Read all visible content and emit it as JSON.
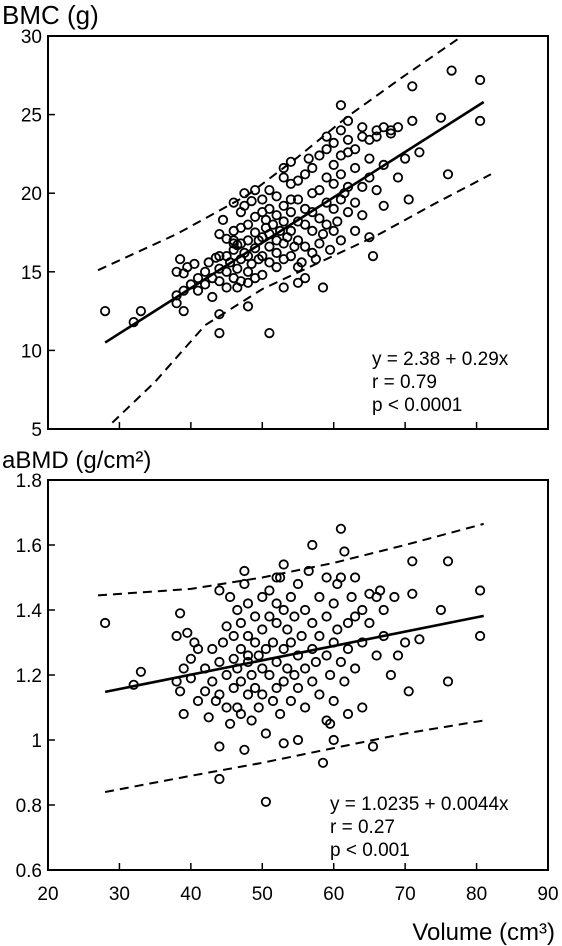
{
  "chart_data": [
    {
      "type": "scatter",
      "ylabel": "BMC (g)",
      "xlim": [
        20,
        90
      ],
      "ylim": [
        5,
        30
      ],
      "xticks": [
        20,
        30,
        40,
        50,
        60,
        70,
        80,
        90
      ],
      "yticks": [
        5,
        10,
        15,
        20,
        25,
        30
      ],
      "x_tick_labels_shown": false,
      "annotation": [
        "y = 2.38 + 0.29x",
        "r = 0.79",
        "p < 0.0001"
      ],
      "fit_line": {
        "x": [
          28,
          81
        ],
        "y": [
          10.5,
          25.8
        ]
      },
      "confidence_band": {
        "upper": {
          "x": [
            27,
            38,
            48,
            55,
            62,
            70,
            78
          ],
          "y": [
            15.1,
            17.4,
            19.9,
            22.3,
            24.9,
            27.5,
            30.0
          ]
        },
        "lower": {
          "x": [
            29,
            35,
            42,
            50,
            58,
            66,
            74,
            82
          ],
          "y": [
            5.4,
            8.0,
            11.6,
            13.9,
            15.6,
            17.3,
            19.3,
            21.2
          ]
        }
      },
      "points": [
        [
          28,
          12.5
        ],
        [
          32,
          11.8
        ],
        [
          33,
          12.5
        ],
        [
          38,
          13.5
        ],
        [
          38,
          15.0
        ],
        [
          38.5,
          15.8
        ],
        [
          39,
          14.9
        ],
        [
          39,
          13.8
        ],
        [
          39.5,
          15.3
        ],
        [
          39,
          12.5
        ],
        [
          38,
          13.0
        ],
        [
          40,
          14.2
        ],
        [
          40.5,
          15.5
        ],
        [
          41,
          14.6
        ],
        [
          41,
          13.8
        ],
        [
          42,
          15.0
        ],
        [
          42,
          14.2
        ],
        [
          42.5,
          15.6
        ],
        [
          43,
          13.4
        ],
        [
          43,
          14.6
        ],
        [
          43.5,
          15.9
        ],
        [
          44,
          14.4
        ],
        [
          44,
          15.2
        ],
        [
          44,
          16.0
        ],
        [
          44,
          12.3
        ],
        [
          44,
          11.1
        ],
        [
          44.5,
          18.3
        ],
        [
          45,
          14.0
        ],
        [
          45,
          15.0
        ],
        [
          45,
          16.0
        ],
        [
          45,
          17.1
        ],
        [
          45.5,
          15.6
        ],
        [
          46,
          14.6
        ],
        [
          46,
          16.4
        ],
        [
          46,
          17.0
        ],
        [
          46,
          17.6
        ],
        [
          46,
          16.8
        ],
        [
          46.5,
          15.2
        ],
        [
          46.5,
          14.0
        ],
        [
          46.5,
          16.7
        ],
        [
          47,
          15.8
        ],
        [
          47,
          16.8
        ],
        [
          47,
          17.8
        ],
        [
          47,
          18.8
        ],
        [
          47,
          14.4
        ],
        [
          47.5,
          16.2
        ],
        [
          47.5,
          19.2
        ],
        [
          47.5,
          20.0
        ],
        [
          48,
          15.0
        ],
        [
          48,
          16.0
        ],
        [
          48,
          17.0
        ],
        [
          48,
          18.0
        ],
        [
          48,
          14.3
        ],
        [
          48,
          12.8
        ],
        [
          48.5,
          19.5
        ],
        [
          48.5,
          15.5
        ],
        [
          49,
          16.5
        ],
        [
          49,
          17.5
        ],
        [
          49,
          18.5
        ],
        [
          49,
          14.6
        ],
        [
          49,
          20.2
        ],
        [
          49.5,
          17.0
        ],
        [
          49.5,
          15.8
        ],
        [
          50,
          16.0
        ],
        [
          50,
          17.2
        ],
        [
          50,
          18.8
        ],
        [
          50,
          19.6
        ],
        [
          50,
          14.8
        ],
        [
          50.5,
          17.8
        ],
        [
          50.5,
          18.3
        ],
        [
          51,
          15.6
        ],
        [
          51,
          16.6
        ],
        [
          51,
          19.0
        ],
        [
          51,
          20.2
        ],
        [
          51,
          17.4
        ],
        [
          51,
          11.1
        ],
        [
          51.5,
          18.0
        ],
        [
          52,
          16.2
        ],
        [
          52,
          17.0
        ],
        [
          52,
          18.6
        ],
        [
          52,
          19.8
        ],
        [
          52,
          15.3
        ],
        [
          52.5,
          17.6
        ],
        [
          53,
          15.8
        ],
        [
          53,
          16.8
        ],
        [
          53,
          18.2
        ],
        [
          53,
          19.2
        ],
        [
          53,
          21.0
        ],
        [
          53,
          21.6
        ],
        [
          53,
          14.0
        ],
        [
          53.5,
          17.2
        ],
        [
          54,
          16.0
        ],
        [
          54,
          17.6
        ],
        [
          54,
          18.8
        ],
        [
          54,
          20.6
        ],
        [
          54,
          19.6
        ],
        [
          54.5,
          16.6
        ],
        [
          55,
          15.3
        ],
        [
          55,
          17.0
        ],
        [
          55,
          18.2
        ],
        [
          55,
          19.6
        ],
        [
          55,
          20.8
        ],
        [
          55.5,
          15.6
        ],
        [
          56,
          16.6
        ],
        [
          56,
          18.0
        ],
        [
          56,
          19.0
        ],
        [
          56,
          21.2
        ],
        [
          56,
          14.6
        ],
        [
          56.5,
          22.2
        ],
        [
          57,
          16.2
        ],
        [
          57,
          17.6
        ],
        [
          57,
          18.8
        ],
        [
          57,
          20.0
        ],
        [
          57,
          21.6
        ],
        [
          57.5,
          15.8
        ],
        [
          58,
          16.8
        ],
        [
          58,
          18.4
        ],
        [
          58,
          20.2
        ],
        [
          58,
          22.4
        ],
        [
          58.5,
          17.4
        ],
        [
          58.5,
          14.0
        ],
        [
          59,
          18.0
        ],
        [
          59,
          19.4
        ],
        [
          59,
          21.0
        ],
        [
          59,
          22.8
        ],
        [
          59,
          23.6
        ],
        [
          59.5,
          16.4
        ],
        [
          60,
          17.6
        ],
        [
          60,
          19.0
        ],
        [
          60,
          20.6
        ],
        [
          60,
          21.8
        ],
        [
          60,
          23.2
        ],
        [
          60.5,
          18.2
        ],
        [
          61,
          17.0
        ],
        [
          61,
          19.6
        ],
        [
          61,
          21.2
        ],
        [
          61,
          22.4
        ],
        [
          61,
          24.0
        ],
        [
          61,
          25.6
        ],
        [
          61.5,
          20.0
        ],
        [
          62,
          18.8
        ],
        [
          62,
          20.4
        ],
        [
          62,
          22.6
        ],
        [
          62,
          23.4
        ],
        [
          62,
          24.6
        ],
        [
          63,
          19.4
        ],
        [
          63,
          21.6
        ],
        [
          63,
          22.8
        ],
        [
          63,
          17.6
        ],
        [
          64,
          20.4
        ],
        [
          64,
          23.6
        ],
        [
          64,
          24.2
        ],
        [
          64,
          18.6
        ],
        [
          65,
          21.0
        ],
        [
          65,
          22.2
        ],
        [
          65,
          23.4
        ],
        [
          65,
          17.2
        ],
        [
          65.5,
          16.0
        ],
        [
          66,
          20.2
        ],
        [
          66,
          24.0
        ],
        [
          66,
          23.6
        ],
        [
          67,
          21.8
        ],
        [
          67,
          24.2
        ],
        [
          67,
          19.2
        ],
        [
          68,
          23.8
        ],
        [
          68,
          24.0
        ],
        [
          69,
          21.0
        ],
        [
          69,
          24.2
        ],
        [
          70,
          22.2
        ],
        [
          70.5,
          19.6
        ],
        [
          71,
          24.6
        ],
        [
          71,
          26.8
        ],
        [
          72,
          22.6
        ],
        [
          75,
          24.8
        ],
        [
          76,
          21.2
        ],
        [
          76.5,
          27.8
        ],
        [
          80.5,
          27.2
        ],
        [
          80.5,
          24.6
        ],
        [
          54,
          22.0
        ],
        [
          44,
          17.4
        ],
        [
          46,
          19.4
        ],
        [
          55,
          14.3
        ]
      ]
    },
    {
      "type": "scatter",
      "ylabel": "aBMD (g/cm²)",
      "xlabel": "Volume (cm³)",
      "xlim": [
        20,
        90
      ],
      "ylim": [
        0.6,
        1.8
      ],
      "xticks": [
        20,
        30,
        40,
        50,
        60,
        70,
        80,
        90
      ],
      "yticks": [
        0.6,
        0.8,
        1.0,
        1.2,
        1.4,
        1.6,
        1.8
      ],
      "x_tick_labels": [
        "20",
        "30",
        "40",
        "50",
        "60",
        "70",
        "80",
        "90"
      ],
      "y_tick_labels": [
        "0.6",
        "0.8",
        "1",
        "1.2",
        "1.4",
        "1.6",
        "1.8"
      ],
      "annotation": [
        "y  = 1.0235 + 0.0044x",
        "r = 0.27",
        "p < 0.001"
      ],
      "fit_line": {
        "x": [
          28,
          81
        ],
        "y": [
          1.148,
          1.382
        ]
      },
      "confidence_band": {
        "upper": {
          "x": [
            27,
            40,
            50,
            60,
            70,
            81
          ],
          "y": [
            1.445,
            1.465,
            1.5,
            1.545,
            1.6,
            1.665
          ]
        },
        "lower": {
          "x": [
            28,
            40,
            50,
            60,
            70,
            81
          ],
          "y": [
            0.84,
            0.89,
            0.93,
            0.975,
            1.02,
            1.06
          ]
        }
      },
      "points": [
        [
          28,
          1.36
        ],
        [
          32,
          1.17
        ],
        [
          33,
          1.21
        ],
        [
          38,
          1.18
        ],
        [
          38,
          1.32
        ],
        [
          38.5,
          1.39
        ],
        [
          38.5,
          1.15
        ],
        [
          39,
          1.08
        ],
        [
          39,
          1.22
        ],
        [
          39.5,
          1.33
        ],
        [
          40,
          1.25
        ],
        [
          40,
          1.19
        ],
        [
          40.5,
          1.3
        ],
        [
          41,
          1.28
        ],
        [
          41,
          1.12
        ],
        [
          42,
          1.22
        ],
        [
          42,
          1.15
        ],
        [
          42.5,
          1.07
        ],
        [
          43,
          1.28
        ],
        [
          43,
          1.18
        ],
        [
          43.5,
          1.12
        ],
        [
          44,
          1.46
        ],
        [
          44,
          1.24
        ],
        [
          44,
          1.14
        ],
        [
          44,
          0.98
        ],
        [
          44,
          0.88
        ],
        [
          44.5,
          1.3
        ],
        [
          45,
          1.2
        ],
        [
          45,
          1.1
        ],
        [
          45,
          1.35
        ],
        [
          45.5,
          1.44
        ],
        [
          45.5,
          1.05
        ],
        [
          46,
          1.25
        ],
        [
          46,
          1.16
        ],
        [
          46,
          1.32
        ],
        [
          46.5,
          1.22
        ],
        [
          46.5,
          1.4
        ],
        [
          46.5,
          1.1
        ],
        [
          47,
          1.28
        ],
        [
          47,
          1.18
        ],
        [
          47,
          1.36
        ],
        [
          47,
          1.08
        ],
        [
          47.5,
          1.48
        ],
        [
          47.5,
          1.52
        ],
        [
          47.5,
          0.97
        ],
        [
          48,
          1.24
        ],
        [
          48,
          1.14
        ],
        [
          48,
          1.32
        ],
        [
          48,
          1.42
        ],
        [
          48.5,
          1.2
        ],
        [
          48.5,
          1.06
        ],
        [
          49,
          1.3
        ],
        [
          49,
          1.16
        ],
        [
          49,
          1.38
        ],
        [
          49.5,
          1.26
        ],
        [
          49.5,
          1.1
        ],
        [
          50,
          1.34
        ],
        [
          50,
          1.22
        ],
        [
          50,
          1.44
        ],
        [
          50,
          1.14
        ],
        [
          50.5,
          1.28
        ],
        [
          50.5,
          1.02
        ],
        [
          50.5,
          0.81
        ],
        [
          51,
          1.2
        ],
        [
          51,
          1.38
        ],
        [
          51,
          1.46
        ],
        [
          51.5,
          1.3
        ],
        [
          51.5,
          1.12
        ],
        [
          52,
          1.24
        ],
        [
          52,
          1.36
        ],
        [
          52,
          1.16
        ],
        [
          52,
          1.42
        ],
        [
          52.5,
          1.5
        ],
        [
          52.5,
          1.08
        ],
        [
          53,
          1.28
        ],
        [
          53,
          1.18
        ],
        [
          53,
          1.4
        ],
        [
          53,
          1.54
        ],
        [
          53,
          0.99
        ],
        [
          53.5,
          1.22
        ],
        [
          53.5,
          1.34
        ],
        [
          54,
          1.3
        ],
        [
          54,
          1.12
        ],
        [
          54,
          1.44
        ],
        [
          54.5,
          1.2
        ],
        [
          54.5,
          1.38
        ],
        [
          55,
          1.26
        ],
        [
          55,
          1.16
        ],
        [
          55,
          1.48
        ],
        [
          55,
          1.0
        ],
        [
          55.5,
          1.32
        ],
        [
          56,
          1.22
        ],
        [
          56,
          1.4
        ],
        [
          56,
          1.1
        ],
        [
          56.5,
          1.52
        ],
        [
          57,
          1.28
        ],
        [
          57,
          1.18
        ],
        [
          57,
          1.36
        ],
        [
          57,
          1.6
        ],
        [
          57.5,
          1.24
        ],
        [
          58,
          1.32
        ],
        [
          58,
          1.14
        ],
        [
          58,
          1.44
        ],
        [
          58.5,
          0.93
        ],
        [
          59,
          1.26
        ],
        [
          59,
          1.38
        ],
        [
          59,
          1.06
        ],
        [
          59,
          1.5
        ],
        [
          59.5,
          1.2
        ],
        [
          59.5,
          1.05
        ],
        [
          60,
          1.3
        ],
        [
          60,
          1.42
        ],
        [
          60,
          1.12
        ],
        [
          60,
          1.0
        ],
        [
          60.5,
          1.34
        ],
        [
          60.5,
          1.48
        ],
        [
          61,
          1.24
        ],
        [
          61,
          1.65
        ],
        [
          61,
          1.5
        ],
        [
          61.5,
          1.58
        ],
        [
          61.5,
          1.18
        ],
        [
          62,
          1.36
        ],
        [
          62,
          1.28
        ],
        [
          62,
          1.08
        ],
        [
          62.5,
          1.44
        ],
        [
          63,
          1.5
        ],
        [
          63,
          1.22
        ],
        [
          63,
          1.38
        ],
        [
          64,
          1.4
        ],
        [
          64,
          1.3
        ],
        [
          64,
          1.1
        ],
        [
          65,
          1.45
        ],
        [
          65,
          1.36
        ],
        [
          65.5,
          0.98
        ],
        [
          66,
          1.44
        ],
        [
          66,
          1.26
        ],
        [
          66.5,
          1.46
        ],
        [
          67,
          1.4
        ],
        [
          67,
          1.32
        ],
        [
          68,
          1.2
        ],
        [
          68.5,
          1.44
        ],
        [
          69,
          1.26
        ],
        [
          70,
          1.3
        ],
        [
          70.5,
          1.15
        ],
        [
          71,
          1.45
        ],
        [
          71,
          1.55
        ],
        [
          72,
          1.31
        ],
        [
          75,
          1.4
        ],
        [
          76,
          1.55
        ],
        [
          76,
          1.18
        ],
        [
          80.5,
          1.46
        ],
        [
          80.5,
          1.32
        ],
        [
          48,
          1.26
        ],
        [
          52,
          1.5
        ]
      ]
    }
  ]
}
